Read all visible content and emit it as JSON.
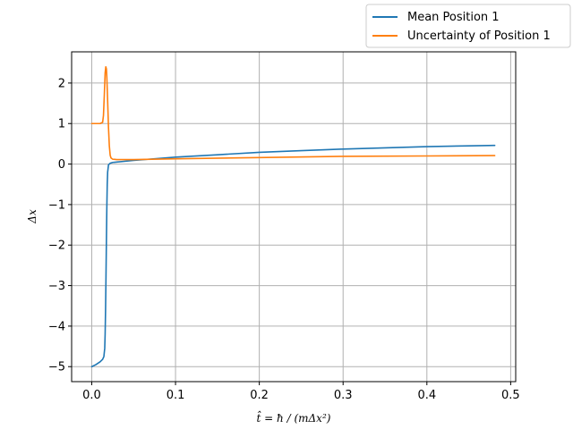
{
  "chart_data": {
    "type": "line",
    "title": "",
    "xlabel": "t̂ = ħ / (mΔx²)",
    "ylabel": "Δx",
    "xlim": [
      -0.024,
      0.506
    ],
    "ylim": [
      -5.37,
      2.77
    ],
    "xticks": [
      0.0,
      0.1,
      0.2,
      0.3,
      0.4,
      0.5
    ],
    "xtick_labels": [
      "0.0",
      "0.1",
      "0.2",
      "0.3",
      "0.4",
      "0.5"
    ],
    "yticks": [
      -5,
      -4,
      -3,
      -2,
      -1,
      0,
      1,
      2
    ],
    "ytick_labels": [
      "−5",
      "−4",
      "−3",
      "−2",
      "−1",
      "0",
      "1",
      "2"
    ],
    "grid": true,
    "legend_position": "above-top-right",
    "series": [
      {
        "name": "Mean Position 1",
        "color": "#1f77b4",
        "x": [
          0.0,
          0.005,
          0.01,
          0.013,
          0.0145,
          0.0155,
          0.016,
          0.0165,
          0.017,
          0.0175,
          0.018,
          0.0185,
          0.019,
          0.02,
          0.022,
          0.025,
          0.03,
          0.05,
          0.1,
          0.15,
          0.2,
          0.25,
          0.3,
          0.35,
          0.4,
          0.45,
          0.481
        ],
        "y": [
          -5.0,
          -4.95,
          -4.88,
          -4.82,
          -4.75,
          -4.55,
          -4.2,
          -3.6,
          -2.8,
          -1.9,
          -1.1,
          -0.5,
          -0.2,
          -0.02,
          0.02,
          0.04,
          0.05,
          0.09,
          0.17,
          0.23,
          0.29,
          0.33,
          0.37,
          0.4,
          0.43,
          0.45,
          0.46
        ]
      },
      {
        "name": "Uncertainty of Position 1",
        "color": "#ff7f0e",
        "x": [
          0.0,
          0.005,
          0.01,
          0.013,
          0.014,
          0.015,
          0.016,
          0.0168,
          0.0175,
          0.018,
          0.019,
          0.02,
          0.021,
          0.022,
          0.023,
          0.025,
          0.03,
          0.05,
          0.1,
          0.2,
          0.3,
          0.4,
          0.481
        ],
        "y": [
          1.0,
          1.0,
          1.0,
          1.03,
          1.2,
          1.7,
          2.25,
          2.4,
          2.35,
          2.15,
          1.55,
          0.9,
          0.45,
          0.22,
          0.15,
          0.12,
          0.11,
          0.11,
          0.13,
          0.16,
          0.19,
          0.2,
          0.21
        ]
      }
    ]
  }
}
